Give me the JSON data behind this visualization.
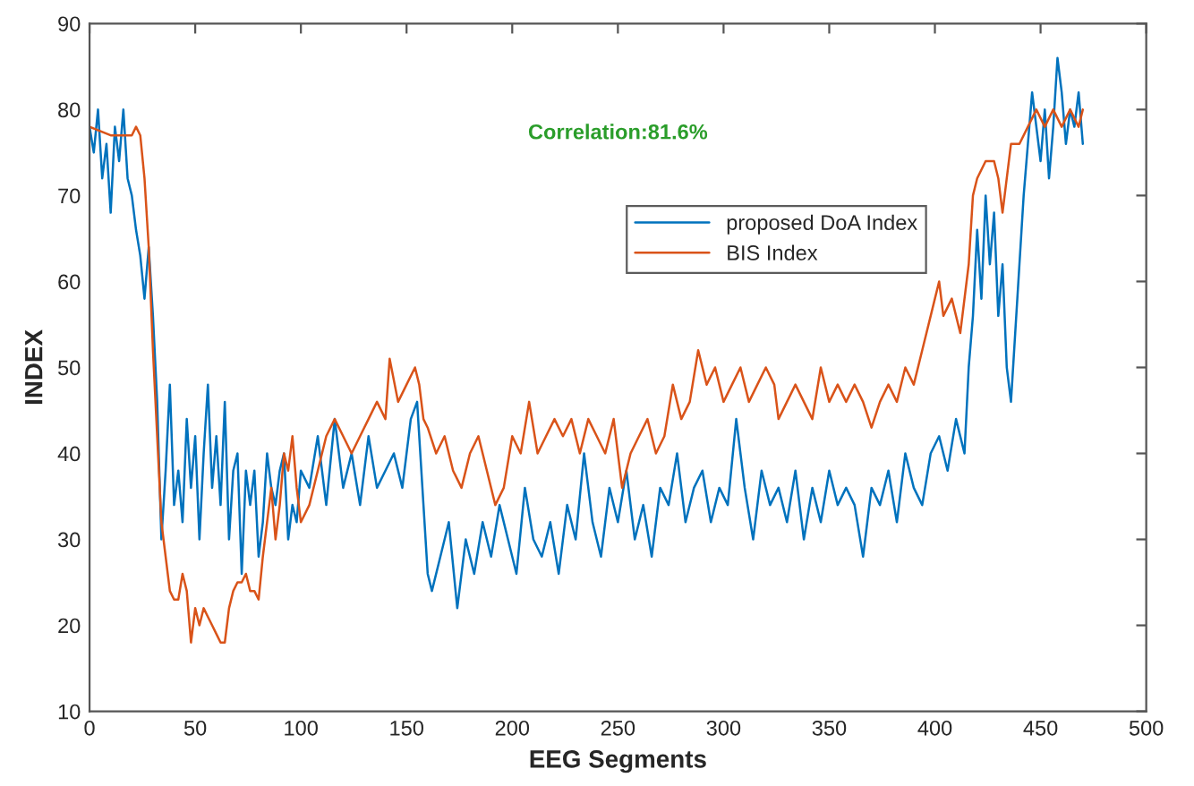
{
  "chart_data": {
    "type": "line",
    "xlabel": "EEG Segments",
    "ylabel": "INDEX",
    "annotations": [
      "Correlation:81.6%"
    ],
    "xlim": [
      0,
      500
    ],
    "xticks": [
      0,
      50,
      100,
      150,
      200,
      250,
      300,
      350,
      400,
      450,
      500
    ],
    "ylim": [
      10,
      90
    ],
    "yticks": [
      10,
      20,
      30,
      40,
      50,
      60,
      70,
      80,
      90
    ],
    "grid": false,
    "legend": "top",
    "series": [
      {
        "name": "proposed DoA Index",
        "color": "#0072bd",
        "x": [
          0,
          2,
          4,
          6,
          8,
          10,
          12,
          14,
          16,
          18,
          20,
          22,
          24,
          26,
          28,
          30,
          32,
          34,
          36,
          38,
          40,
          42,
          44,
          46,
          48,
          50,
          52,
          54,
          56,
          58,
          60,
          62,
          64,
          66,
          68,
          70,
          72,
          74,
          76,
          78,
          80,
          82,
          84,
          86,
          88,
          90,
          92,
          94,
          96,
          98,
          100,
          104,
          108,
          110,
          112,
          116,
          120,
          124,
          128,
          132,
          136,
          140,
          144,
          148,
          152,
          155,
          158,
          160,
          162,
          166,
          170,
          174,
          178,
          182,
          186,
          190,
          194,
          198,
          202,
          206,
          210,
          214,
          218,
          222,
          226,
          230,
          234,
          238,
          242,
          246,
          250,
          254,
          258,
          262,
          266,
          270,
          274,
          278,
          282,
          286,
          290,
          294,
          298,
          302,
          306,
          310,
          314,
          318,
          322,
          326,
          330,
          334,
          338,
          342,
          346,
          350,
          354,
          358,
          362,
          366,
          370,
          374,
          378,
          382,
          386,
          390,
          394,
          398,
          402,
          406,
          410,
          414,
          416,
          418,
          420,
          422,
          424,
          426,
          428,
          430,
          432,
          434,
          436,
          438,
          440,
          442,
          444,
          446,
          448,
          450,
          452,
          454,
          456,
          458,
          460,
          462,
          464,
          466,
          468,
          470
        ],
        "values": [
          78,
          75,
          80,
          72,
          76,
          68,
          78,
          74,
          80,
          72,
          70,
          66,
          63,
          58,
          64,
          56,
          46,
          30,
          38,
          48,
          34,
          38,
          32,
          44,
          36,
          42,
          30,
          40,
          48,
          36,
          42,
          34,
          46,
          30,
          38,
          40,
          26,
          38,
          34,
          38,
          28,
          32,
          40,
          36,
          34,
          38,
          40,
          30,
          34,
          32,
          38,
          36,
          42,
          38,
          34,
          44,
          36,
          40,
          34,
          42,
          36,
          38,
          40,
          36,
          44,
          46,
          34,
          26,
          24,
          28,
          32,
          22,
          30,
          26,
          32,
          28,
          34,
          30,
          26,
          36,
          30,
          28,
          32,
          26,
          34,
          30,
          40,
          32,
          28,
          36,
          32,
          38,
          30,
          34,
          28,
          36,
          34,
          40,
          32,
          36,
          38,
          32,
          36,
          34,
          44,
          36,
          30,
          38,
          34,
          36,
          32,
          38,
          30,
          36,
          32,
          38,
          34,
          36,
          34,
          28,
          36,
          34,
          38,
          32,
          40,
          36,
          34,
          40,
          42,
          38,
          44,
          40,
          50,
          56,
          66,
          58,
          70,
          62,
          68,
          56,
          62,
          50,
          46,
          54,
          62,
          70,
          76,
          82,
          78,
          74,
          80,
          72,
          78,
          86,
          82,
          76,
          80,
          78,
          82,
          76
        ]
      },
      {
        "name": "BIS Index",
        "color": "#d95319",
        "x": [
          0,
          10,
          16,
          20,
          22,
          24,
          26,
          28,
          30,
          32,
          34,
          36,
          38,
          40,
          42,
          44,
          46,
          48,
          50,
          52,
          54,
          56,
          58,
          60,
          62,
          64,
          66,
          68,
          70,
          72,
          74,
          76,
          78,
          80,
          82,
          84,
          86,
          88,
          90,
          92,
          94,
          96,
          98,
          100,
          104,
          108,
          112,
          116,
          120,
          124,
          128,
          132,
          136,
          140,
          142,
          146,
          150,
          154,
          156,
          158,
          160,
          164,
          168,
          172,
          176,
          180,
          184,
          188,
          192,
          196,
          200,
          204,
          208,
          212,
          216,
          220,
          224,
          228,
          232,
          236,
          240,
          244,
          248,
          252,
          256,
          260,
          264,
          268,
          272,
          276,
          280,
          284,
          288,
          292,
          296,
          300,
          304,
          308,
          312,
          316,
          320,
          324,
          326,
          330,
          334,
          338,
          342,
          346,
          350,
          354,
          358,
          362,
          366,
          370,
          374,
          378,
          382,
          386,
          390,
          394,
          398,
          400,
          402,
          404,
          408,
          412,
          416,
          418,
          420,
          424,
          428,
          430,
          432,
          434,
          436,
          440,
          444,
          448,
          452,
          456,
          460,
          464,
          468,
          470
        ],
        "values": [
          78,
          77,
          77,
          77,
          78,
          77,
          72,
          64,
          52,
          42,
          32,
          28,
          24,
          23,
          23,
          26,
          24,
          18,
          22,
          20,
          22,
          21,
          20,
          19,
          18,
          18,
          22,
          24,
          25,
          25,
          26,
          24,
          24,
          23,
          28,
          32,
          36,
          30,
          34,
          40,
          38,
          42,
          36,
          32,
          34,
          38,
          42,
          44,
          42,
          40,
          42,
          44,
          46,
          44,
          51,
          46,
          48,
          50,
          48,
          44,
          43,
          40,
          42,
          38,
          36,
          40,
          42,
          38,
          34,
          36,
          42,
          40,
          46,
          40,
          42,
          44,
          42,
          44,
          40,
          44,
          42,
          40,
          44,
          36,
          40,
          42,
          44,
          40,
          42,
          48,
          44,
          46,
          52,
          48,
          50,
          46,
          48,
          50,
          46,
          48,
          50,
          48,
          44,
          46,
          48,
          46,
          44,
          50,
          46,
          48,
          46,
          48,
          46,
          43,
          46,
          48,
          46,
          50,
          48,
          52,
          56,
          58,
          60,
          56,
          58,
          54,
          62,
          70,
          72,
          74,
          74,
          72,
          68,
          72,
          76,
          76,
          78,
          80,
          78,
          80,
          78,
          80,
          78,
          80
        ]
      }
    ]
  }
}
